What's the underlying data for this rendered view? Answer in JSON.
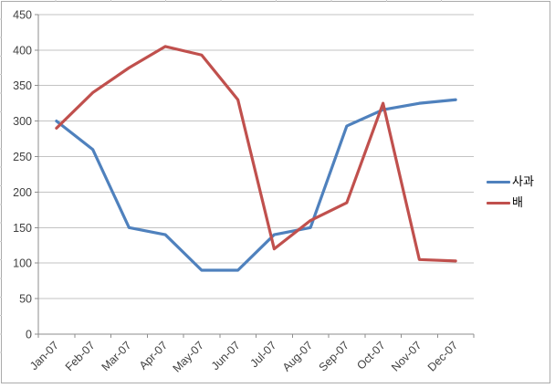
{
  "chart_data": {
    "type": "line",
    "title": "",
    "xlabel": "",
    "ylabel": "",
    "categories": [
      "Jan-07",
      "Feb-07",
      "Mar-07",
      "Apr-07",
      "May-07",
      "Jun-07",
      "Jul-07",
      "Aug-07",
      "Sep-07",
      "Oct-07",
      "Nov-07",
      "Dec-07"
    ],
    "series": [
      {
        "name": "사과",
        "color": "#4F81BD",
        "values": [
          300,
          260,
          150,
          140,
          90,
          90,
          140,
          150,
          293,
          316,
          325,
          330
        ]
      },
      {
        "name": "배",
        "color": "#C0504D",
        "values": [
          290,
          340,
          375,
          405,
          393,
          330,
          120,
          160,
          185,
          325,
          105,
          103
        ]
      }
    ],
    "ylim": [
      0,
      450
    ],
    "ytick_step": 50,
    "ytick_labels": [
      "0",
      "50",
      "100",
      "150",
      "200",
      "250",
      "300",
      "350",
      "400",
      "450"
    ],
    "grid": "horizontal",
    "legend_position": "right"
  },
  "colors": {
    "background": "#ffffff",
    "frame_border": "#ababab",
    "gridline": "#c3c3c3",
    "axis": "#8e8e8e",
    "tick": "#8e8e8e",
    "axis_text": "#404040",
    "sliver_tick": "#c9c9c9"
  }
}
